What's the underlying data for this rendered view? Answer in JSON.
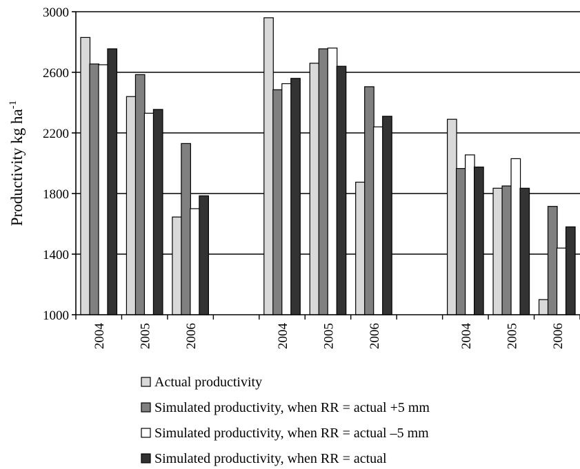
{
  "chart_data": {
    "type": "bar",
    "title": "",
    "xlabel": "",
    "ylabel": "Productivity kg ha",
    "ylabel_superscript": "-1",
    "ylim": [
      1000,
      3000
    ],
    "yticks": [
      1000,
      1400,
      1800,
      2200,
      2600,
      3000
    ],
    "grid": true,
    "legend_position": "bottom",
    "categories": [
      "2004",
      "2005",
      "2006",
      "",
      "2004",
      "2005",
      "2006",
      "",
      "2004",
      "2005",
      "2006"
    ],
    "series": [
      {
        "name": "Actual productivity",
        "color": "#d9d9d9",
        "values": [
          2830,
          2440,
          1645,
          null,
          2960,
          2660,
          1875,
          null,
          2290,
          1835,
          1100
        ]
      },
      {
        "name": "Simulated productivity, when RR = actual +5 mm",
        "color": "#808080",
        "values": [
          2655,
          2585,
          2130,
          null,
          2485,
          2755,
          2505,
          null,
          1965,
          1850,
          1715
        ]
      },
      {
        "name": "Simulated productivity, when RR = actual –5 mm",
        "color": "#ffffff",
        "values": [
          2650,
          2330,
          1700,
          null,
          2525,
          2760,
          2240,
          null,
          2055,
          2030,
          1440
        ]
      },
      {
        "name": "Simulated productivity, when RR = actual",
        "color": "#333333",
        "values": [
          2755,
          2355,
          1785,
          null,
          2560,
          2640,
          2310,
          null,
          1975,
          1835,
          1580
        ]
      }
    ]
  }
}
